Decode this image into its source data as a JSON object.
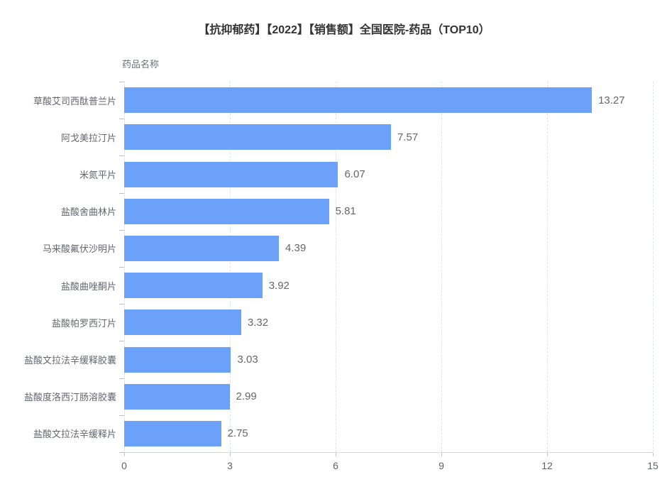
{
  "chart_data": {
    "type": "bar",
    "orientation": "horizontal",
    "title": "【抗抑郁药】【2022】【销售额】全国医院-药品（TOP10）",
    "ylabel": "药品名称",
    "xlabel": "",
    "categories": [
      "草酸艾司西酞普兰片",
      "阿戈美拉汀片",
      "米氮平片",
      "盐酸舍曲林片",
      "马来酸氟伏沙明片",
      "盐酸曲唑酮片",
      "盐酸帕罗西汀片",
      "盐酸文拉法辛缓释胶囊",
      "盐酸度洛西汀肠溶胶囊",
      "盐酸文拉法辛缓释片"
    ],
    "values": [
      13.27,
      7.57,
      6.07,
      5.81,
      4.39,
      3.92,
      3.32,
      3.03,
      2.99,
      2.75
    ],
    "value_labels": [
      "13.27",
      "7.57",
      "6.07",
      "5.81",
      "4.39",
      "3.92",
      "3.32",
      "3.03",
      "2.99",
      "2.75"
    ],
    "xlim": [
      0,
      15
    ],
    "x_ticks": [
      0,
      3,
      6,
      9,
      12,
      15
    ],
    "legend": "none",
    "grid": "vertical-dashed",
    "colors": {
      "bar": "#6CA1F9",
      "title": "#333333",
      "category_label": "#63666C",
      "value_label": "#666666",
      "tick_label": "#5E626B",
      "axis_line": "#D4D7DE",
      "gridline": "#DCE3F1"
    }
  }
}
